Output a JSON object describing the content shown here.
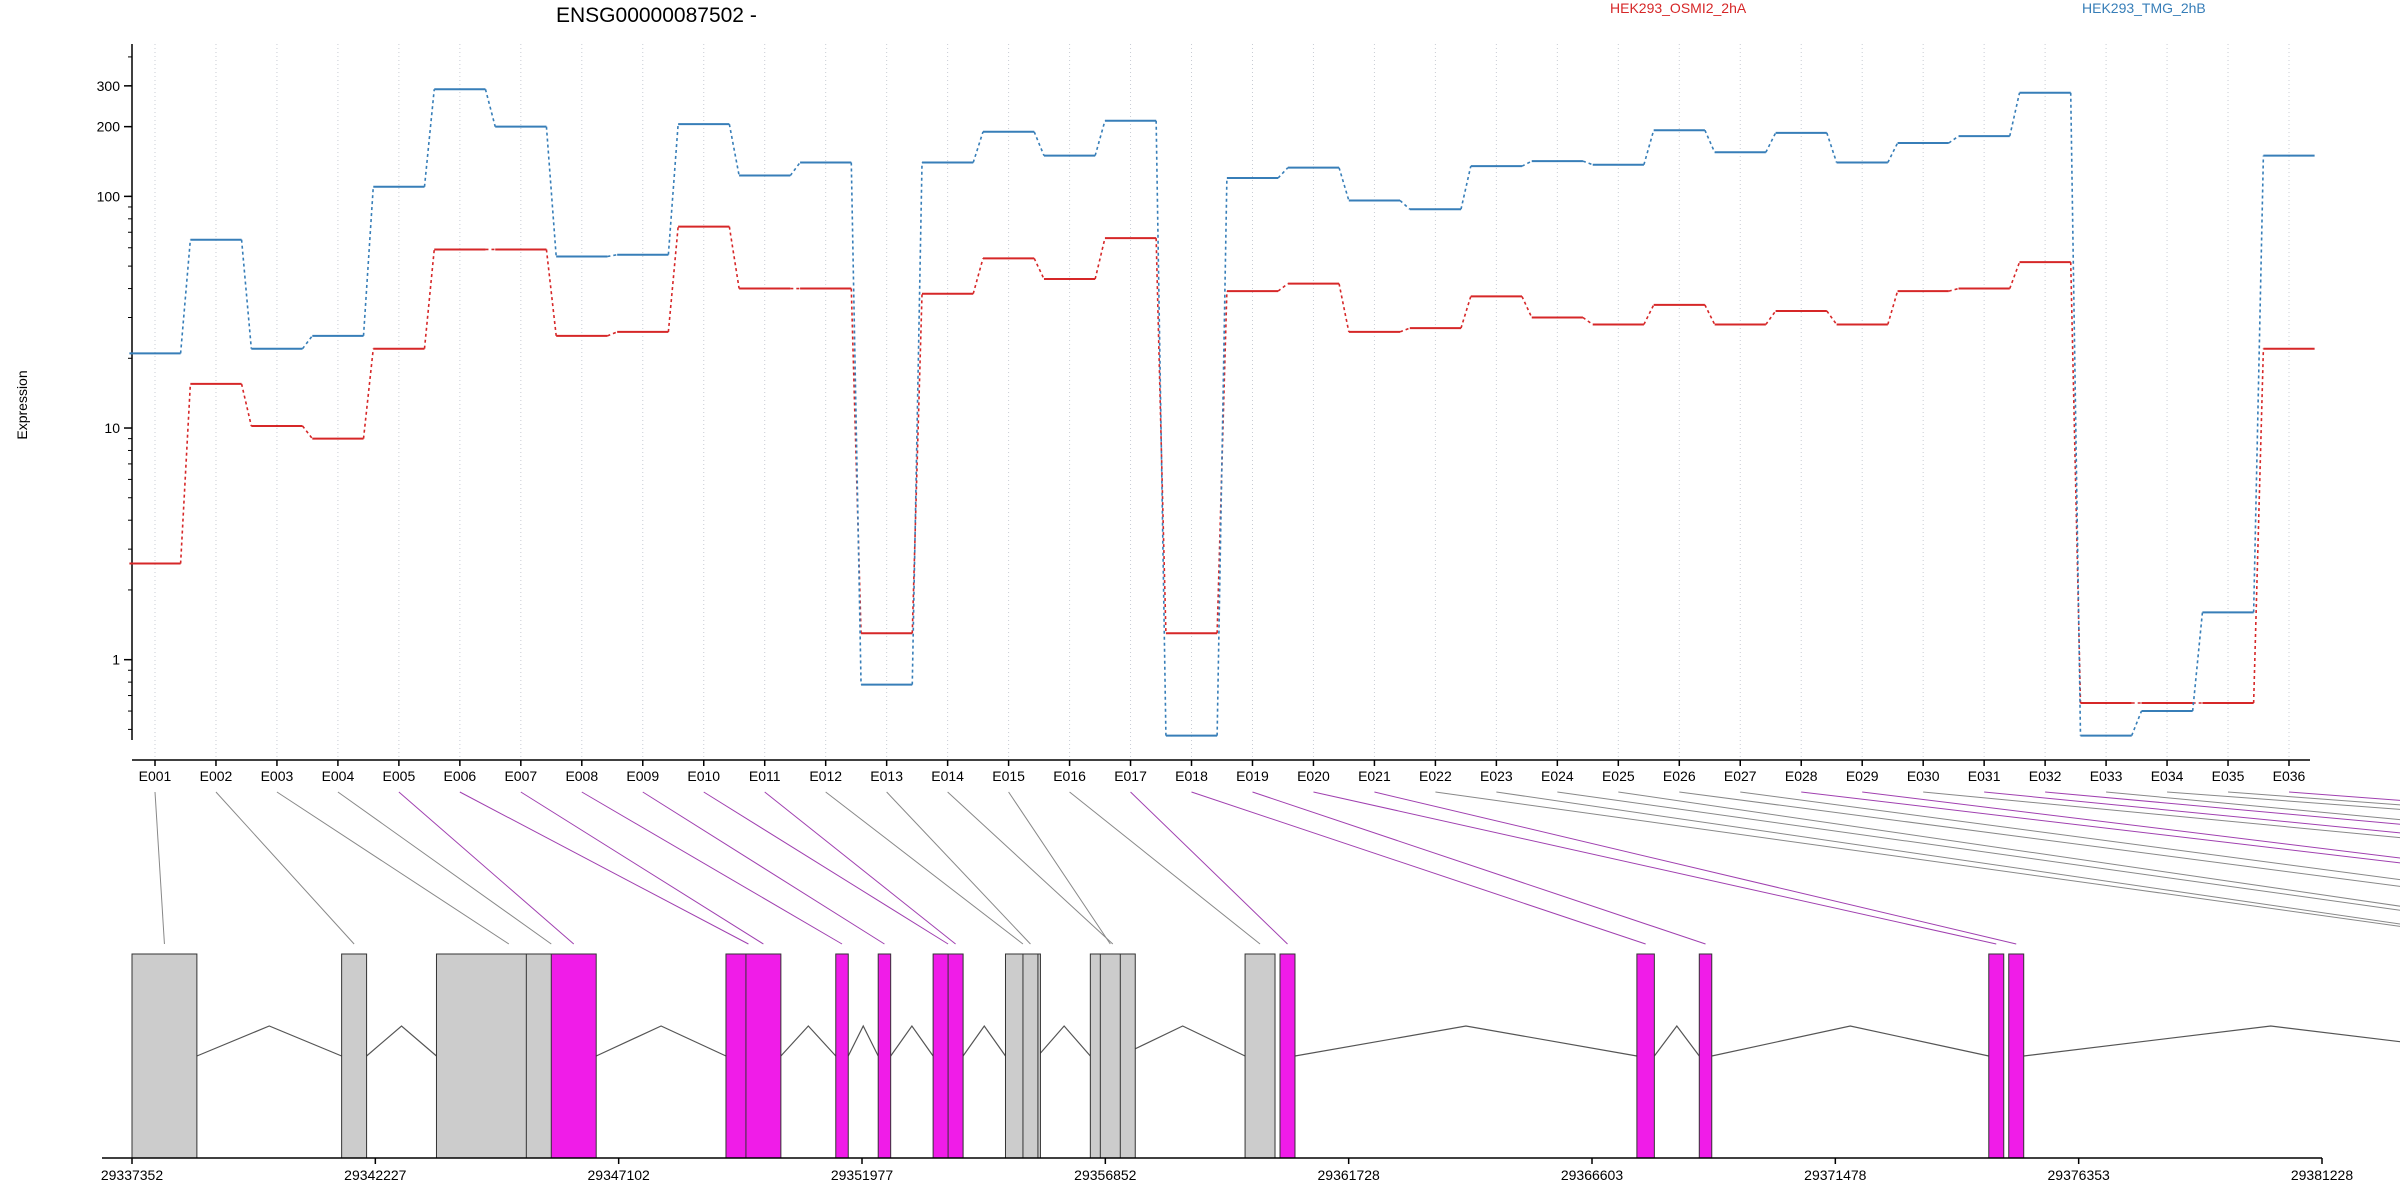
{
  "chart_data": {
    "type": "line",
    "title": "ENSG00000087502 -",
    "ylabel": "Expression",
    "xlabel": "",
    "y_scale": "log",
    "ylim": [
      0.45,
      420
    ],
    "y_ticks": [
      1,
      10,
      100,
      200,
      300
    ],
    "y_tick_labels": [
      "1",
      "10",
      "100",
      "200",
      "300"
    ],
    "grid": "vertical dotted lines at each exon",
    "legend_position": "top",
    "categories": [
      "E001",
      "E002",
      "E003",
      "E004",
      "E005",
      "E006",
      "E007",
      "E008",
      "E009",
      "E010",
      "E011",
      "E012",
      "E013",
      "E014",
      "E015",
      "E016",
      "E017",
      "E018",
      "E019",
      "E020",
      "E021",
      "E022",
      "E023",
      "E024",
      "E025",
      "E026",
      "E027",
      "E028",
      "E029",
      "E030",
      "E031",
      "E032",
      "E033",
      "E034",
      "E035",
      "E036"
    ],
    "series": [
      {
        "name": "HEK293_OSMI2_2hA",
        "color": "#d62728",
        "values": [
          2.6,
          15.5,
          10.2,
          9,
          22,
          59,
          59,
          25,
          26,
          74,
          40,
          40,
          1.3,
          38,
          54,
          44,
          66,
          1.3,
          39,
          42,
          26,
          27,
          37,
          30,
          28,
          34,
          28,
          32,
          28,
          39,
          40,
          52,
          0.65,
          0.65,
          0.65,
          22
        ]
      },
      {
        "name": "HEK293_TMG_2hB",
        "color": "#377eb8",
        "values": [
          21,
          65,
          22,
          25,
          110,
          290,
          200,
          55,
          56,
          205,
          123,
          140,
          0.78,
          140,
          190,
          150,
          212,
          0.47,
          120,
          133,
          96,
          88,
          135,
          142,
          137,
          193,
          155,
          188,
          140,
          170,
          182,
          280,
          0.47,
          0.6,
          1.6,
          150
        ]
      }
    ],
    "genomic_axis": {
      "tick_labels": [
        "29337352",
        "29342227",
        "29347102",
        "29351977",
        "29356852",
        "29361728",
        "29366603",
        "29371478",
        "29376353",
        "29381228"
      ],
      "start": 29337352,
      "end": 29381228
    },
    "exon_highlight_colors": {
      "significant": "#f01ce8",
      "normal": "#cccccc",
      "connector_significant": "#a040b0",
      "connector_normal": "#888888"
    },
    "significant_exons": [
      "E005",
      "E006",
      "E007",
      "E008",
      "E009",
      "E010",
      "E011",
      "E017",
      "E018",
      "E019",
      "E020",
      "E021",
      "E028",
      "E029",
      "E031",
      "E032",
      "E036"
    ]
  }
}
